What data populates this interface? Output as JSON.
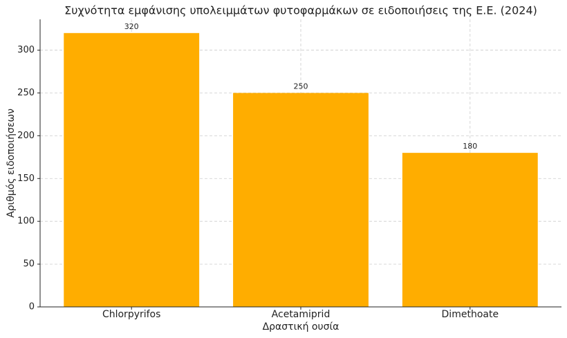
{
  "chart_data": {
    "type": "bar",
    "title": "Συχνότητα εμφάνισης υπολειμμάτων φυτοφαρμάκων σε ειδοποιήσεις της Ε.Ε. (2024)",
    "x_label": "Δραστική ουσία",
    "y_label": "Αριθμός ειδοποιήσεων",
    "categories": [
      "Chlorpyrifos",
      "Acetamiprid",
      "Dimethoate"
    ],
    "values": [
      320,
      250,
      180
    ],
    "color": "#ffad00",
    "ylim": [
      0,
      336
    ],
    "yticks": [
      0,
      50,
      100,
      150,
      200,
      250,
      300
    ],
    "grid": true
  }
}
